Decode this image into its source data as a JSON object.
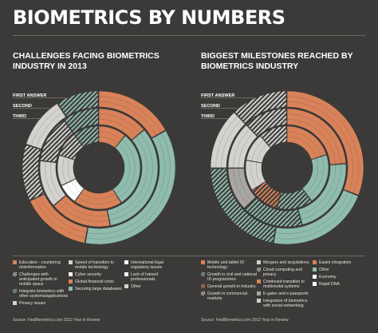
{
  "header": {
    "title": "BIOMETRICS BY NUMBERS"
  },
  "colors": {
    "background": "#3b3a38",
    "orange": "#d98259",
    "light_gray": "#d3d2cf",
    "mid_gray": "#a8a6a2",
    "teal": "#8fbcad",
    "white": "#ffffff",
    "rule": "#6d6b67"
  },
  "chart_data": [
    {
      "type": "donut",
      "title": "CHALLENGES FACING BIOMETRICS INDUSTRY IN 2013",
      "ring_labels": [
        "FIRST ANSWER",
        "SECOND",
        "THIRD"
      ],
      "rings": [
        {
          "name": "FIRST ANSWER",
          "segments": [
            {
              "label": "Education - countering misinformation",
              "value": 0.17,
              "color": "#d98259",
              "pattern": "solid"
            },
            {
              "label": "Securing large databases",
              "value": 0.36,
              "color": "#8fbcad",
              "pattern": "solid"
            },
            {
              "label": "Global financial crisis",
              "value": 0.15,
              "color": "#d98259",
              "pattern": "solid"
            },
            {
              "label": "Challenges with anticipated growth in mobile space",
              "value": 0.12,
              "color": "#d3d2cf",
              "pattern": "hatch"
            },
            {
              "label": "Privacy issues",
              "value": 0.11,
              "color": "#d3d2cf",
              "pattern": "solid"
            },
            {
              "label": "Integrate biometrics with other systems/applications",
              "value": 0.09,
              "color": "#8fbcad",
              "pattern": "hatch"
            }
          ]
        },
        {
          "name": "SECOND",
          "segments": [
            {
              "label": "Education - countering misinformation",
              "value": 0.14,
              "color": "#d98259",
              "pattern": "solid"
            },
            {
              "label": "Securing large databases",
              "value": 0.33,
              "color": "#8fbcad",
              "pattern": "solid"
            },
            {
              "label": "Global financial crisis",
              "value": 0.17,
              "color": "#d98259",
              "pattern": "solid"
            },
            {
              "label": "Privacy issues",
              "value": 0.13,
              "color": "#d3d2cf",
              "pattern": "solid"
            },
            {
              "label": "Challenges with anticipated growth in mobile space",
              "value": 0.13,
              "color": "#d3d2cf",
              "pattern": "hatch"
            },
            {
              "label": "Integrate biometrics with other systems/applications",
              "value": 0.1,
              "color": "#8fbcad",
              "pattern": "hatch"
            }
          ]
        },
        {
          "name": "THIRD",
          "segments": [
            {
              "label": "Education - countering misinformation",
              "value": 0.11,
              "color": "#d98259",
              "pattern": "solid"
            },
            {
              "label": "Securing large databases",
              "value": 0.3,
              "color": "#8fbcad",
              "pattern": "solid"
            },
            {
              "label": "Global financial crisis",
              "value": 0.19,
              "color": "#d98259",
              "pattern": "solid"
            },
            {
              "label": "Cyber security",
              "value": 0.08,
              "color": "#ffffff",
              "pattern": "solid"
            },
            {
              "label": "Privacy issues",
              "value": 0.12,
              "color": "#d3d2cf",
              "pattern": "solid"
            },
            {
              "label": "Challenges with anticipated growth in mobile space",
              "value": 0.1,
              "color": "#d3d2cf",
              "pattern": "hatch"
            },
            {
              "label": "Integrate biometrics with other systems/applications",
              "value": 0.1,
              "color": "#8fbcad",
              "pattern": "hatch"
            }
          ]
        }
      ],
      "legend": [
        [
          {
            "label": "Education - countering misinformation",
            "color": "#d98259",
            "pattern": "solid"
          },
          {
            "label": "Challenges with anticipated growth in mobile space",
            "color": "#d3d2cf",
            "pattern": "hatch"
          },
          {
            "label": "Integrate biometrics with other systems/applications",
            "color": "#8fbcad",
            "pattern": "hatch"
          },
          {
            "label": "Privacy issues",
            "color": "#d3d2cf",
            "pattern": "solid"
          }
        ],
        [
          {
            "label": "Speed of transition to mobile technology",
            "color": "#d3d2cf",
            "pattern": "solid"
          },
          {
            "label": "Cyber security",
            "color": "#ffffff",
            "pattern": "solid"
          },
          {
            "label": "Global financial crisis",
            "color": "#d98259",
            "pattern": "solid"
          },
          {
            "label": "Securing large databases",
            "color": "#8fbcad",
            "pattern": "solid"
          }
        ],
        [
          {
            "label": "International legal regulatory issues",
            "color": "#ffffff",
            "pattern": "solid"
          },
          {
            "label": "Lack of trained professionals",
            "color": "#ffffff",
            "pattern": "solid"
          },
          {
            "label": "Other",
            "color": "#d3d2cf",
            "pattern": "solid"
          }
        ]
      ],
      "source": "Source: FindBiometrics.com 2012 Year in Review"
    },
    {
      "type": "donut",
      "title": "BIGGEST MILESTONES REACHED BY BIOMETRICS INDUSTRY",
      "ring_labels": [
        "FIRST ANSWER",
        "SECOND",
        "THIRD"
      ],
      "rings": [
        {
          "name": "FIRST ANSWER",
          "segments": [
            {
              "label": "Mobile and tablet ID technology",
              "value": 0.31,
              "color": "#d98259",
              "pattern": "solid"
            },
            {
              "label": "Other",
              "value": 0.22,
              "color": "#8fbcad",
              "pattern": "solid"
            },
            {
              "label": "Growth in civil and national ID programmes",
              "value": 0.22,
              "color": "#8fbcad",
              "pattern": "hatch"
            },
            {
              "label": "Mergers and acquisitions",
              "value": 0.13,
              "color": "#d3d2cf",
              "pattern": "solid"
            },
            {
              "label": "Cloud computing and privacy",
              "value": 0.12,
              "color": "#d3d2cf",
              "pattern": "hatch"
            }
          ]
        },
        {
          "name": "SECOND",
          "segments": [
            {
              "label": "Mobile and tablet ID technology",
              "value": 0.24,
              "color": "#d98259",
              "pattern": "solid"
            },
            {
              "label": "Other",
              "value": 0.22,
              "color": "#8fbcad",
              "pattern": "solid"
            },
            {
              "label": "Growth in civil and national ID programmes",
              "value": 0.17,
              "color": "#8fbcad",
              "pattern": "hatch"
            },
            {
              "label": "E-gates and e-passports",
              "value": 0.12,
              "color": "#a8a6a2",
              "pattern": "solid"
            },
            {
              "label": "Mergers and acquisitions",
              "value": 0.13,
              "color": "#d3d2cf",
              "pattern": "solid"
            },
            {
              "label": "Cloud computing and privacy",
              "value": 0.12,
              "color": "#d3d2cf",
              "pattern": "hatch"
            }
          ]
        },
        {
          "name": "THIRD",
          "segments": [
            {
              "label": "Mobile and tablet ID technology",
              "value": 0.2,
              "color": "#d98259",
              "pattern": "solid"
            },
            {
              "label": "Other",
              "value": 0.2,
              "color": "#8fbcad",
              "pattern": "solid"
            },
            {
              "label": "Growth in civil and national ID programmes",
              "value": 0.14,
              "color": "#8fbcad",
              "pattern": "hatch"
            },
            {
              "label": "Continued transition to multimodal systems",
              "value": 0.12,
              "color": "#d98259",
              "pattern": "hatch"
            },
            {
              "label": "Integration of biometrics with social networking",
              "value": 0.12,
              "color": "#d3d2cf",
              "pattern": "solid"
            },
            {
              "label": "Mergers and acquisitions",
              "value": 0.11,
              "color": "#d3d2cf",
              "pattern": "solid"
            },
            {
              "label": "Cloud computing and privacy",
              "value": 0.11,
              "color": "#d3d2cf",
              "pattern": "hatch"
            }
          ]
        }
      ],
      "legend": [
        [
          {
            "label": "Mobile and tablet ID technology",
            "color": "#d98259",
            "pattern": "solid"
          },
          {
            "label": "Growth in civil and national ID programmes",
            "color": "#8fbcad",
            "pattern": "hatch"
          },
          {
            "label": "General growth in industry",
            "color": "#d98259",
            "pattern": "hatch"
          },
          {
            "label": "Growth in commercial markets",
            "color": "#d3d2cf",
            "pattern": "hatch"
          }
        ],
        [
          {
            "label": "Mergers and acquisitions",
            "color": "#d3d2cf",
            "pattern": "solid"
          },
          {
            "label": "Cloud computing and privacy",
            "color": "#d3d2cf",
            "pattern": "hatch"
          },
          {
            "label": "Continued transition to multimodal systems",
            "color": "#d98259",
            "pattern": "solid"
          },
          {
            "label": "E-gates and e-passports",
            "color": "#a8a6a2",
            "pattern": "solid"
          },
          {
            "label": "Integration of biometrics with social networking",
            "color": "#d3d2cf",
            "pattern": "solid"
          }
        ],
        [
          {
            "label": "Easier integration",
            "color": "#d98259",
            "pattern": "solid"
          },
          {
            "label": "Other",
            "color": "#8fbcad",
            "pattern": "solid"
          },
          {
            "label": "Economy",
            "color": "#ffffff",
            "pattern": "solid"
          },
          {
            "label": "Rapid DNA",
            "color": "#ffffff",
            "pattern": "solid"
          }
        ]
      ],
      "source": "Source: FindBiometrics.com 2012 Year in Review"
    }
  ]
}
